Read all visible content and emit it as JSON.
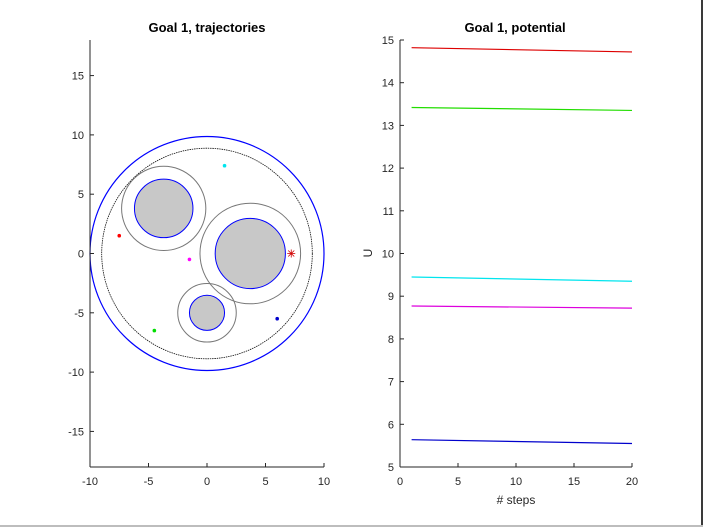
{
  "chart_data": [
    {
      "type": "scatter",
      "title": "Goal 1, trajectories",
      "xlabel": "",
      "ylabel": "",
      "xlim": [
        -10,
        10
      ],
      "ylim": [
        -18,
        18
      ],
      "xticks": [
        -10,
        -5,
        0,
        5,
        10
      ],
      "xtick_labels": [
        "-10",
        "-5",
        "0",
        "5",
        "10"
      ],
      "yticks": [
        -15,
        -10,
        -5,
        0,
        5,
        10,
        15
      ],
      "ytick_labels": [
        "-15",
        "-10",
        "-5",
        "0",
        "5",
        "10",
        "15"
      ],
      "grid": false,
      "world_boundary": {
        "cx": 0,
        "cy": 0,
        "r": 10,
        "color": "#0000ff",
        "safety_r": 9.0
      },
      "obstacles": [
        {
          "cx": 3.7,
          "cy": 0,
          "r": 3.0,
          "safety_r": 4.3,
          "fill": "#c8c8c8",
          "edge": "#0000ff"
        },
        {
          "cx": -3.7,
          "cy": 3.8,
          "r": 2.5,
          "safety_r": 3.6,
          "fill": "#c8c8c8",
          "edge": "#0000ff"
        },
        {
          "cx": 0,
          "cy": -5.0,
          "r": 1.5,
          "safety_r": 2.5,
          "fill": "#c8c8c8",
          "edge": "#0000ff"
        }
      ],
      "goal": {
        "x": 7.2,
        "y": 0,
        "marker": "*",
        "color": "#d00000"
      },
      "agents": [
        {
          "x": -7.5,
          "y": 1.5,
          "color": "#ff0000"
        },
        {
          "x": 1.5,
          "y": 7.4,
          "color": "#00e5ee"
        },
        {
          "x": -1.5,
          "y": -0.5,
          "color": "#ff00ff"
        },
        {
          "x": -4.5,
          "y": -6.5,
          "color": "#00dd00"
        },
        {
          "x": 6.0,
          "y": -5.5,
          "color": "#0000cc"
        }
      ]
    },
    {
      "type": "line",
      "title": "Goal 1, potential",
      "xlabel": "# steps",
      "ylabel": "U",
      "xlim": [
        0,
        20
      ],
      "ylim": [
        5,
        15
      ],
      "xticks": [
        0,
        5,
        10,
        15,
        20
      ],
      "xtick_labels": [
        "0",
        "5",
        "10",
        "15",
        "20"
      ],
      "yticks": [
        5,
        6,
        7,
        8,
        9,
        10,
        11,
        12,
        13,
        14,
        15
      ],
      "ytick_labels": [
        "5",
        "6",
        "7",
        "8",
        "9",
        "10",
        "11",
        "12",
        "13",
        "14",
        "15"
      ],
      "grid": false,
      "x": [
        1,
        20
      ],
      "series": [
        {
          "color": "#dd0000",
          "values": [
            14.82,
            14.72
          ]
        },
        {
          "color": "#22dd00",
          "values": [
            13.42,
            13.35
          ]
        },
        {
          "color": "#00e5ee",
          "values": [
            9.45,
            9.35
          ]
        },
        {
          "color": "#dd00dd",
          "values": [
            8.77,
            8.72
          ]
        },
        {
          "color": "#0000cc",
          "values": [
            5.64,
            5.55
          ]
        }
      ]
    }
  ]
}
